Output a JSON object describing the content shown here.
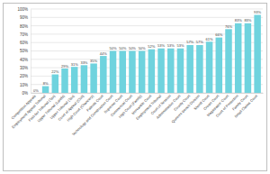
{
  "chart_data": {
    "type": "bar",
    "categories": [
      "Competition Appeals",
      "Employment Appeal Tribunal",
      "First-tier Tribunal (Tax)",
      "Upper Tribunal (Lands)",
      "Upper Tribunal (Tax)",
      "Court of Appeal (Civil)",
      "High Court (Chancery)",
      "Patents Court",
      "Technology and Construction Court",
      "Supreme Court",
      "Commercial Court",
      "High Court (Family)",
      "Mercantile Court",
      "Employment Tribunal",
      "Court of Session",
      "Administrative Court",
      "County Court",
      "Queen's Bench Division",
      "Sheriff Court",
      "Crown Court",
      "Magistrates' Court",
      "Court of Protection",
      "Family Court",
      "Small Claims Court"
    ],
    "values": [
      0,
      8,
      22,
      29,
      31,
      33,
      35,
      44,
      50,
      50,
      50,
      50,
      52,
      53,
      53,
      53,
      57,
      57,
      61,
      66,
      76,
      83,
      83,
      93
    ],
    "value_labels": [
      "0%",
      "8%",
      "22%",
      "29%",
      "31%",
      "33%",
      "35%",
      "44%",
      "50%",
      "50%",
      "50%",
      "50%",
      "52%",
      "53%",
      "53%",
      "53%",
      "57%",
      "57%",
      "61%",
      "66%",
      "76%",
      "83%",
      "83%",
      "93%"
    ],
    "color": "#6fd3de",
    "ylim": [
      0,
      100
    ],
    "yticks": [
      {
        "value": 0,
        "label": "0%"
      },
      {
        "value": 10,
        "label": "10%"
      },
      {
        "value": 20,
        "label": "20%"
      },
      {
        "value": 30,
        "label": "30%"
      },
      {
        "value": 40,
        "label": "40%"
      },
      {
        "value": 50,
        "label": "50%"
      },
      {
        "value": 60,
        "label": "60%"
      },
      {
        "value": 70,
        "label": "70%"
      },
      {
        "value": 80,
        "label": "80%"
      },
      {
        "value": 90,
        "label": "90%"
      },
      {
        "value": 100,
        "label": "100%"
      }
    ],
    "grid": true,
    "data_labels": true
  }
}
